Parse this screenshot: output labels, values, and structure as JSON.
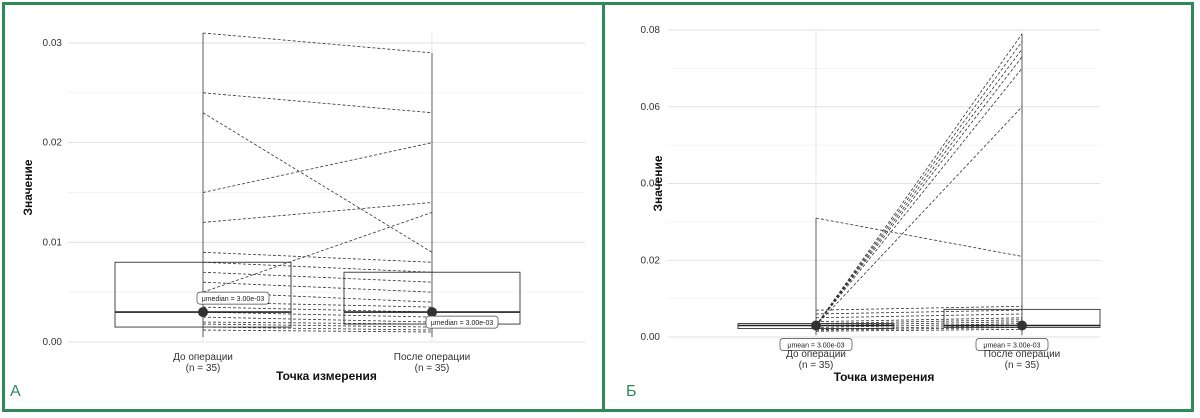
{
  "panels": [
    {
      "letter": "А"
    },
    {
      "letter": "Б"
    }
  ],
  "chart_data": [
    {
      "type": "line",
      "xlabel": "Точка измерения",
      "ylabel": "Значение",
      "categories": [
        "До операции\n(n = 35)",
        "После операции\n(n = 35)"
      ],
      "yticks": [
        "0.00",
        "0.01",
        "0.02",
        "0.03"
      ],
      "ylim": [
        0,
        0.031
      ],
      "annotations": [
        {
          "text": "μmedian = 3.00e-03"
        },
        {
          "text": "μmedian = 3.00e-03"
        }
      ],
      "medians": [
        0.003,
        0.003
      ],
      "series": [
        {
          "values": [
            0.031,
            0.029
          ]
        },
        {
          "values": [
            0.025,
            0.023
          ]
        },
        {
          "values": [
            0.023,
            0.009
          ]
        },
        {
          "values": [
            0.015,
            0.02
          ]
        },
        {
          "values": [
            0.012,
            0.014
          ]
        },
        {
          "values": [
            0.009,
            0.008
          ]
        },
        {
          "values": [
            0.008,
            0.007
          ]
        },
        {
          "values": [
            0.005,
            0.013
          ]
        },
        {
          "values": [
            0.007,
            0.006
          ]
        },
        {
          "values": [
            0.006,
            0.005
          ]
        },
        {
          "values": [
            0.005,
            0.004
          ]
        },
        {
          "values": [
            0.004,
            0.0035
          ]
        },
        {
          "values": [
            0.0035,
            0.003
          ]
        },
        {
          "values": [
            0.003,
            0.0025
          ]
        },
        {
          "values": [
            0.0025,
            0.002
          ]
        },
        {
          "values": [
            0.002,
            0.0018
          ]
        },
        {
          "values": [
            0.0018,
            0.0015
          ]
        },
        {
          "values": [
            0.0015,
            0.0012
          ]
        },
        {
          "values": [
            0.0012,
            0.001
          ]
        }
      ],
      "boxes": [
        {
          "q1": 0.0015,
          "median": 0.003,
          "q3": 0.008
        },
        {
          "q1": 0.0018,
          "median": 0.003,
          "q3": 0.007
        }
      ],
      "grid": true
    },
    {
      "type": "line",
      "xlabel": "Точка измерения",
      "ylabel": "Значение",
      "categories": [
        "До операции\n(n = 35)",
        "После операции\n(n = 35)"
      ],
      "yticks": [
        "0.00",
        "0.02",
        "0.04",
        "0.06",
        "0.08"
      ],
      "ylim": [
        0,
        0.08
      ],
      "annotations": [
        {
          "text": "μmean = 3.00e-03"
        },
        {
          "text": "μmean = 3.00e-03"
        }
      ],
      "medians": [
        0.003,
        0.003
      ],
      "series": [
        {
          "values": [
            0.031,
            0.021
          ]
        },
        {
          "values": [
            0.003,
            0.079
          ]
        },
        {
          "values": [
            0.003,
            0.077
          ]
        },
        {
          "values": [
            0.003,
            0.075
          ]
        },
        {
          "values": [
            0.003,
            0.073
          ]
        },
        {
          "values": [
            0.003,
            0.07
          ]
        },
        {
          "values": [
            0.003,
            0.06
          ]
        },
        {
          "values": [
            0.007,
            0.008
          ]
        },
        {
          "values": [
            0.006,
            0.007
          ]
        },
        {
          "values": [
            0.005,
            0.006
          ]
        },
        {
          "values": [
            0.004,
            0.005
          ]
        },
        {
          "values": [
            0.0035,
            0.0045
          ]
        },
        {
          "values": [
            0.003,
            0.004
          ]
        },
        {
          "values": [
            0.0025,
            0.0035
          ]
        },
        {
          "values": [
            0.002,
            0.003
          ]
        },
        {
          "values": [
            0.0018,
            0.0025
          ]
        },
        {
          "values": [
            0.0015,
            0.002
          ]
        }
      ],
      "boxes": [
        {
          "q1": 0.0022,
          "median": 0.003,
          "q3": 0.0035
        },
        {
          "q1": 0.0025,
          "median": 0.003,
          "q3": 0.0072
        }
      ],
      "grid": true
    }
  ]
}
